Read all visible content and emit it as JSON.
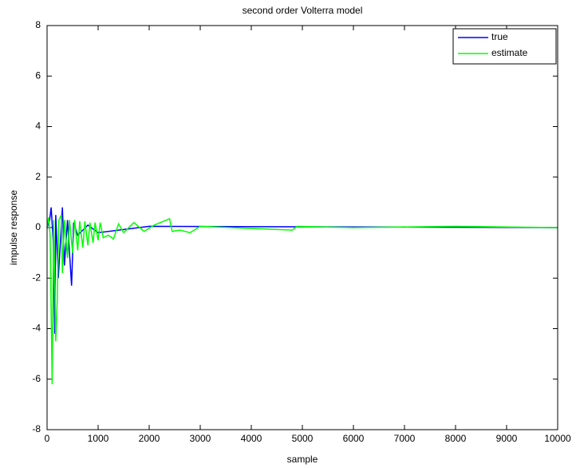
{
  "chart_data": {
    "type": "line",
    "title": "second order Volterra model",
    "xlabel": "sample",
    "ylabel": "impulse response",
    "xlim": [
      0,
      10000
    ],
    "ylim": [
      -8,
      8
    ],
    "xticks": [
      0,
      1000,
      2000,
      3000,
      4000,
      5000,
      6000,
      7000,
      8000,
      9000,
      10000
    ],
    "yticks": [
      -8,
      -6,
      -4,
      -2,
      0,
      2,
      4,
      6,
      8
    ],
    "legend": "upper right",
    "series": [
      {
        "name": "true",
        "color": "#0000ff",
        "x": [
          0,
          50,
          80,
          120,
          150,
          170,
          220,
          300,
          340,
          400,
          480,
          520,
          600,
          800,
          1000,
          2000,
          10000
        ],
        "values": [
          0,
          0.3,
          0.8,
          -0.5,
          -4.2,
          0.5,
          -2.0,
          0.8,
          -1.5,
          0.3,
          -2.3,
          0.2,
          -0.3,
          0.1,
          -0.2,
          0.05,
          0
        ]
      },
      {
        "name": "estimate",
        "color": "#00ff00",
        "x": [
          0,
          30,
          60,
          100,
          130,
          170,
          200,
          230,
          280,
          300,
          340,
          400,
          440,
          500,
          540,
          600,
          640,
          700,
          740,
          800,
          840,
          900,
          940,
          1000,
          1040,
          1100,
          1200,
          1300,
          1400,
          1500,
          1700,
          1900,
          2100,
          2400,
          2450,
          2600,
          2800,
          3000,
          4800,
          4900,
          6000,
          8000,
          10000
        ],
        "values": [
          0,
          0.4,
          -0.3,
          -6.2,
          0.3,
          -4.5,
          -2.8,
          0.3,
          0.5,
          -1.8,
          0.3,
          -1.2,
          0.3,
          -1.0,
          0.3,
          -0.9,
          0.25,
          -0.8,
          0.25,
          -0.7,
          0.2,
          -0.6,
          0.2,
          -0.5,
          0.2,
          -0.4,
          -0.3,
          -0.45,
          0.15,
          -0.2,
          0.2,
          -0.15,
          0.1,
          0.35,
          -0.15,
          -0.1,
          -0.2,
          0.05,
          -0.1,
          0.05,
          0,
          0.05,
          0
        ]
      }
    ]
  }
}
